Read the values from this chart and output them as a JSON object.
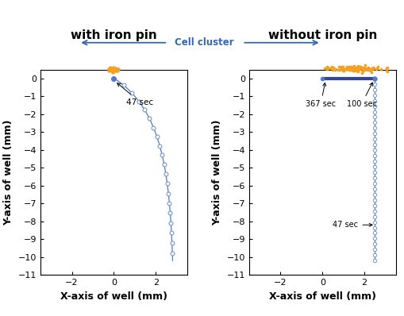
{
  "left_title": "with iron pin",
  "right_title": "without iron pin",
  "cell_cluster_label": "Cell cluster",
  "xlabel": "X-axis of well (mm)",
  "ylabel": "Y-axis of well (mm)",
  "xlim": [
    -3.5,
    3.5
  ],
  "ylim": [
    -11,
    0.5
  ],
  "yticks": [
    0,
    -1,
    -2,
    -3,
    -4,
    -5,
    -6,
    -7,
    -8,
    -9,
    -10,
    -11
  ],
  "xticks": [
    -2,
    0,
    2
  ],
  "line_color": "#5577cc",
  "marker_edgecolor": "#7799cc",
  "cell_color": "#f5a020",
  "annotation_fontsize": 7.5,
  "title_fontsize": 11,
  "label_fontsize": 9,
  "tick_fontsize": 8,
  "bg_color": "#ffffff"
}
